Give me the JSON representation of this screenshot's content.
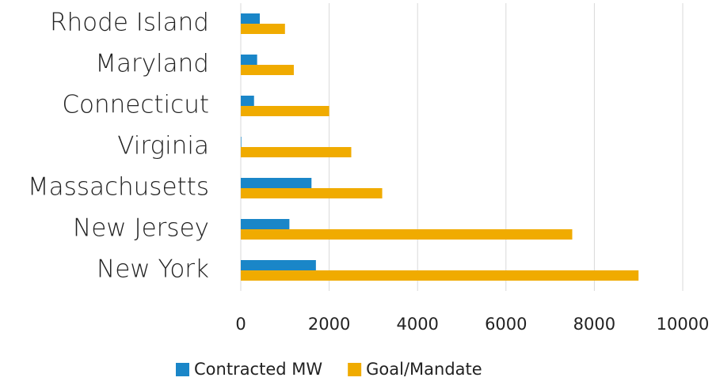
{
  "chart_data": {
    "type": "bar",
    "orientation": "horizontal",
    "categories": [
      "Rhode Island",
      "Maryland",
      "Connecticut",
      "Virginia",
      "Massachusetts",
      "New Jersey",
      "New York"
    ],
    "series": [
      {
        "name": "Contracted MW",
        "color": "#1a86c8",
        "values": [
          430,
          370,
          300,
          12,
          1600,
          1100,
          1700
        ]
      },
      {
        "name": "Goal/Mandate",
        "color": "#f0ab00",
        "values": [
          1000,
          1200,
          2000,
          2500,
          3200,
          7500,
          9000
        ]
      }
    ],
    "xlim": [
      0,
      10000
    ],
    "xticks": [
      0,
      2000,
      4000,
      6000,
      8000,
      10000
    ],
    "grid": true
  }
}
